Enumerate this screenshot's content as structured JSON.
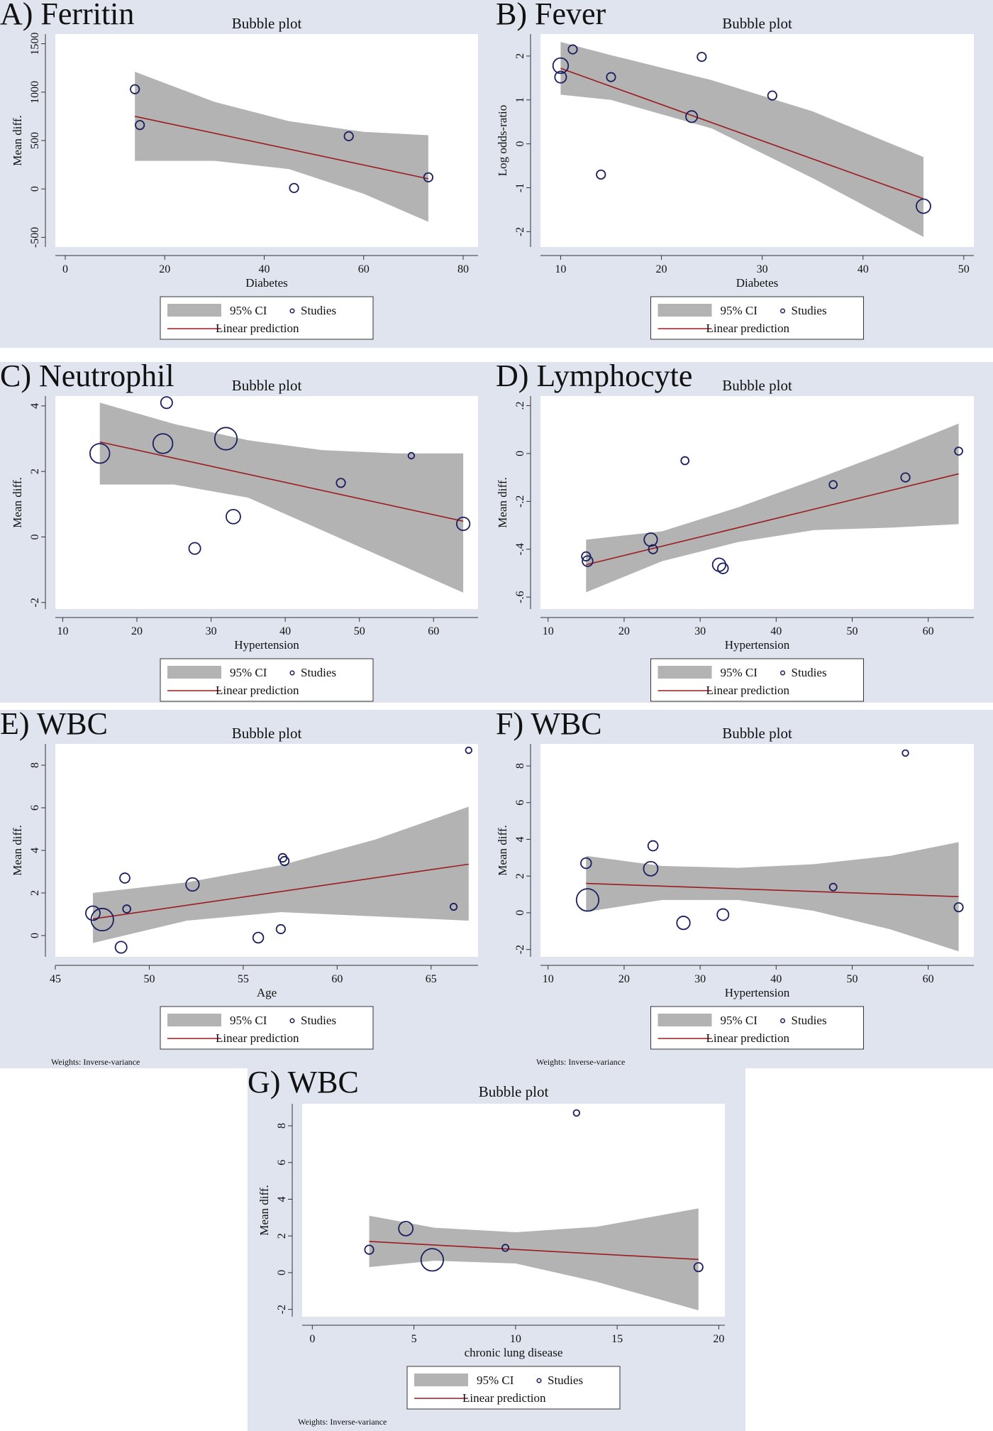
{
  "figure": {
    "legend_labels": {
      "ci": "95% CI",
      "studies": "Studies",
      "line": "Linear prediction"
    },
    "weights_note": "Weights: Inverse-variance"
  },
  "chart_data": [
    {
      "panel_label": "A) Ferritin",
      "title": "Bubble plot",
      "type": "scatter",
      "xlabel": "Diabetes",
      "ylabel": "Mean diff.",
      "xlim": [
        -2,
        83
      ],
      "ylim": [
        -600,
        1600
      ],
      "xticks": [
        0,
        20,
        40,
        60,
        80
      ],
      "yticks": [
        -500,
        0,
        500,
        1000,
        1500
      ],
      "yticks_rotated": true,
      "points": [
        {
          "x": 14,
          "y": 1030,
          "w": 1
        },
        {
          "x": 15,
          "y": 660,
          "w": 1
        },
        {
          "x": 46,
          "y": 10,
          "w": 1
        },
        {
          "x": 57,
          "y": 545,
          "w": 1
        },
        {
          "x": 73,
          "y": 120,
          "w": 1
        }
      ],
      "fit": {
        "x": [
          14,
          73
        ],
        "y": [
          750,
          105
        ]
      },
      "ci": {
        "x": [
          14,
          30,
          45,
          60,
          73
        ],
        "upper": [
          1210,
          900,
          700,
          590,
          555
        ],
        "lower": [
          290,
          290,
          205,
          -50,
          -340
        ]
      }
    },
    {
      "panel_label": "B) Fever",
      "title": "Bubble plot",
      "type": "scatter",
      "xlabel": "Diabetes",
      "ylabel": "Log odds-ratio",
      "xlim": [
        8,
        51
      ],
      "ylim": [
        -2.35,
        2.5
      ],
      "xticks": [
        10,
        20,
        30,
        40,
        50
      ],
      "yticks": [
        -2,
        -1,
        0,
        1,
        2
      ],
      "yticks_rotated": true,
      "points": [
        {
          "x": 10,
          "y": 1.78,
          "w": 2.2
        },
        {
          "x": 10,
          "y": 1.52,
          "w": 1.5
        },
        {
          "x": 11.2,
          "y": 2.15,
          "w": 1
        },
        {
          "x": 15,
          "y": 1.52,
          "w": 1
        },
        {
          "x": 14,
          "y": -0.7,
          "w": 1
        },
        {
          "x": 23,
          "y": 0.62,
          "w": 1.5
        },
        {
          "x": 24,
          "y": 1.98,
          "w": 1
        },
        {
          "x": 31,
          "y": 1.1,
          "w": 1
        },
        {
          "x": 46,
          "y": -1.42,
          "w": 2
        }
      ],
      "fit": {
        "x": [
          10,
          46
        ],
        "y": [
          1.72,
          -1.25
        ]
      },
      "ci": {
        "x": [
          10,
          15,
          25,
          35,
          46
        ],
        "upper": [
          2.32,
          2.02,
          1.45,
          0.74,
          -0.3
        ],
        "lower": [
          1.12,
          1.0,
          0.35,
          -0.78,
          -2.12
        ]
      }
    },
    {
      "panel_label": "C) Neutrophil",
      "title": "Bubble plot",
      "type": "scatter",
      "xlabel": "Hypertension",
      "ylabel": "Mean diff.",
      "xlim": [
        9,
        66
      ],
      "ylim": [
        -2.2,
        4.3
      ],
      "xticks": [
        10,
        20,
        30,
        40,
        50,
        60
      ],
      "yticks": [
        -2,
        0,
        2,
        4
      ],
      "yticks_rotated": true,
      "points": [
        {
          "x": 15,
          "y": 2.55,
          "w": 3
        },
        {
          "x": 23.5,
          "y": 2.85,
          "w": 3
        },
        {
          "x": 24,
          "y": 4.1,
          "w": 1.5
        },
        {
          "x": 27.8,
          "y": -0.35,
          "w": 1.5
        },
        {
          "x": 32,
          "y": 3.0,
          "w": 3.5
        },
        {
          "x": 33,
          "y": 0.62,
          "w": 2
        },
        {
          "x": 47.5,
          "y": 1.65,
          "w": 1
        },
        {
          "x": 57,
          "y": 2.48,
          "w": 0.5
        },
        {
          "x": 64,
          "y": 0.4,
          "w": 1.8
        }
      ],
      "fit": {
        "x": [
          15,
          64
        ],
        "y": [
          2.9,
          0.48
        ]
      },
      "ci": {
        "x": [
          15,
          25,
          35,
          45,
          55,
          64
        ],
        "upper": [
          4.1,
          3.45,
          2.95,
          2.65,
          2.55,
          2.55
        ],
        "lower": [
          1.6,
          1.6,
          1.2,
          0.2,
          -0.8,
          -1.7
        ]
      }
    },
    {
      "panel_label": "D) Lymphocyte",
      "title": "Bubble plot",
      "type": "scatter",
      "xlabel": "Hypertension",
      "ylabel": "Mean diff.",
      "xlim": [
        9,
        66
      ],
      "ylim": [
        -0.65,
        0.24
      ],
      "xticks": [
        10,
        20,
        30,
        40,
        50,
        60
      ],
      "yticks": [
        -0.6,
        -0.4,
        -0.2,
        0,
        0.2
      ],
      "ytick_labels": [
        "-.6",
        "-.4",
        "-.2",
        "0",
        ".2"
      ],
      "yticks_rotated": true,
      "points": [
        {
          "x": 15,
          "y": -0.43,
          "w": 1
        },
        {
          "x": 15.2,
          "y": -0.45,
          "w": 1.3
        },
        {
          "x": 23.5,
          "y": -0.36,
          "w": 1.8
        },
        {
          "x": 23.8,
          "y": -0.4,
          "w": 1
        },
        {
          "x": 28,
          "y": -0.03,
          "w": 0.8
        },
        {
          "x": 32.5,
          "y": -0.465,
          "w": 1.8
        },
        {
          "x": 33,
          "y": -0.48,
          "w": 1.3
        },
        {
          "x": 47.5,
          "y": -0.13,
          "w": 0.8
        },
        {
          "x": 57,
          "y": -0.1,
          "w": 1
        },
        {
          "x": 64,
          "y": 0.01,
          "w": 0.8
        }
      ],
      "fit": {
        "x": [
          15,
          64
        ],
        "y": [
          -0.465,
          -0.085
        ]
      },
      "ci": {
        "x": [
          15,
          25,
          35,
          45,
          55,
          64
        ],
        "upper": [
          -0.36,
          -0.325,
          -0.225,
          -0.11,
          0.01,
          0.125
        ],
        "lower": [
          -0.58,
          -0.45,
          -0.37,
          -0.32,
          -0.31,
          -0.295
        ]
      }
    },
    {
      "panel_label": "E) WBC",
      "title": "Bubble plot",
      "type": "scatter",
      "xlabel": "Age",
      "ylabel": "Mean diff.",
      "xlim": [
        45,
        67.5
      ],
      "ylim": [
        -1.0,
        9.0
      ],
      "xticks": [
        45,
        50,
        55,
        60,
        65
      ],
      "yticks": [
        0,
        2,
        4,
        6,
        8
      ],
      "yticks_rotated": true,
      "points": [
        {
          "x": 47,
          "y": 1.05,
          "w": 2
        },
        {
          "x": 47.5,
          "y": 0.75,
          "w": 3.5
        },
        {
          "x": 48.5,
          "y": -0.55,
          "w": 1.5
        },
        {
          "x": 48.7,
          "y": 2.7,
          "w": 1.2
        },
        {
          "x": 48.8,
          "y": 1.25,
          "w": 0.8
        },
        {
          "x": 52.3,
          "y": 2.4,
          "w": 1.8
        },
        {
          "x": 55.8,
          "y": -0.1,
          "w": 1.3
        },
        {
          "x": 57,
          "y": 0.3,
          "w": 1
        },
        {
          "x": 57.1,
          "y": 3.65,
          "w": 0.9
        },
        {
          "x": 57.2,
          "y": 3.5,
          "w": 1
        },
        {
          "x": 66.2,
          "y": 1.35,
          "w": 0.6
        },
        {
          "x": 67,
          "y": 8.7,
          "w": 0.5
        }
      ],
      "fit": {
        "x": [
          47,
          67
        ],
        "y": [
          0.78,
          3.35
        ]
      },
      "ci": {
        "x": [
          47,
          52,
          57,
          62,
          67
        ],
        "upper": [
          2.0,
          2.5,
          3.3,
          4.5,
          6.05
        ],
        "lower": [
          -0.35,
          0.7,
          1.1,
          0.9,
          0.7
        ]
      }
    },
    {
      "panel_label": "F) WBC",
      "title": "Bubble plot",
      "type": "scatter",
      "xlabel": "Hypertension",
      "ylabel": "Mean diff.",
      "xlim": [
        9,
        66
      ],
      "ylim": [
        -2.4,
        9.2
      ],
      "xticks": [
        10,
        20,
        30,
        40,
        50,
        60
      ],
      "yticks": [
        -2,
        0,
        2,
        4,
        6,
        8
      ],
      "yticks_rotated": true,
      "points": [
        {
          "x": 15,
          "y": 2.7,
          "w": 1.3
        },
        {
          "x": 15.2,
          "y": 0.7,
          "w": 3.5
        },
        {
          "x": 23.5,
          "y": 2.4,
          "w": 2
        },
        {
          "x": 23.8,
          "y": 3.65,
          "w": 1.2
        },
        {
          "x": 27.8,
          "y": -0.55,
          "w": 1.8
        },
        {
          "x": 33,
          "y": -0.1,
          "w": 1.5
        },
        {
          "x": 47.5,
          "y": 1.4,
          "w": 0.7
        },
        {
          "x": 57,
          "y": 8.7,
          "w": 0.5
        },
        {
          "x": 64,
          "y": 0.3,
          "w": 1
        }
      ],
      "fit": {
        "x": [
          15,
          64
        ],
        "y": [
          1.6,
          0.88
        ]
      },
      "ci": {
        "x": [
          15,
          25,
          35,
          45,
          55,
          64
        ],
        "upper": [
          3.1,
          2.55,
          2.45,
          2.65,
          3.1,
          3.85
        ],
        "lower": [
          0.05,
          0.7,
          0.7,
          0.1,
          -0.9,
          -2.1
        ]
      }
    },
    {
      "panel_label": "G) WBC",
      "title": "Bubble plot",
      "type": "scatter",
      "xlabel": "chronic lung disease",
      "ylabel": "Mean diff.",
      "xlim": [
        -0.5,
        20.3
      ],
      "ylim": [
        -2.4,
        9.2
      ],
      "xticks": [
        0,
        5,
        10,
        15,
        20
      ],
      "yticks": [
        -2,
        0,
        2,
        4,
        6,
        8
      ],
      "yticks_rotated": true,
      "points": [
        {
          "x": 2.8,
          "y": 1.25,
          "w": 1
        },
        {
          "x": 4.6,
          "y": 2.4,
          "w": 2
        },
        {
          "x": 5.9,
          "y": 0.7,
          "w": 3.5
        },
        {
          "x": 9.5,
          "y": 1.35,
          "w": 0.6
        },
        {
          "x": 13,
          "y": 8.7,
          "w": 0.5
        },
        {
          "x": 19,
          "y": 0.3,
          "w": 1
        }
      ],
      "fit": {
        "x": [
          2.8,
          19
        ],
        "y": [
          1.7,
          0.72
        ]
      },
      "ci": {
        "x": [
          2.8,
          6,
          10,
          14,
          19
        ],
        "upper": [
          3.1,
          2.45,
          2.2,
          2.5,
          3.5
        ],
        "lower": [
          0.3,
          0.65,
          0.5,
          -0.5,
          -2.05
        ]
      }
    }
  ]
}
